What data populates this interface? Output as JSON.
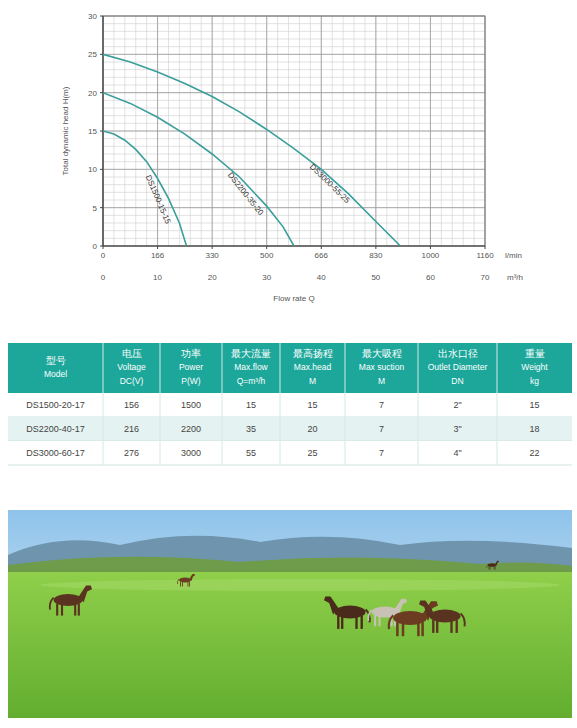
{
  "chart_data": {
    "type": "line",
    "xlabel": "Flow rate Q",
    "ylabel": "Total dynamic head H(m)",
    "x_unit": "m³/h",
    "x2_unit": "l/min",
    "xlim": [
      0,
      70
    ],
    "xticks": [
      0,
      10,
      20,
      30,
      40,
      50,
      60,
      70
    ],
    "x2ticks": [
      {
        "value": 0,
        "label": "0"
      },
      {
        "value": 10,
        "label": "166"
      },
      {
        "value": 20,
        "label": "330"
      },
      {
        "value": 30,
        "label": "500"
      },
      {
        "value": 40,
        "label": "666"
      },
      {
        "value": 50,
        "label": "830"
      },
      {
        "value": 60,
        "label": "1000"
      },
      {
        "value": 70,
        "label": "1160"
      }
    ],
    "ylim": [
      0,
      30
    ],
    "yticks": [
      0,
      5,
      10,
      15,
      20,
      25,
      30
    ],
    "grid": true,
    "color": "#3a9e9a",
    "series": [
      {
        "name": "DS1500-15-15",
        "x": [
          0,
          2,
          4,
          6,
          8,
          10,
          12,
          14,
          15.3
        ],
        "values": [
          15,
          14.6,
          13.8,
          12.6,
          11,
          8.8,
          6.2,
          3,
          0
        ]
      },
      {
        "name": "DS2200-35-20",
        "x": [
          0,
          5,
          10,
          15,
          20,
          25,
          30,
          33,
          35
        ],
        "values": [
          20,
          18.6,
          16.8,
          14.6,
          12,
          9,
          5.2,
          2.5,
          0
        ]
      },
      {
        "name": "DS3000-55-25",
        "x": [
          0,
          5,
          10,
          15,
          20,
          25,
          30,
          35,
          40,
          45,
          50,
          54.5
        ],
        "values": [
          25,
          24,
          22.7,
          21.2,
          19.5,
          17.5,
          15.2,
          12.7,
          10,
          6.8,
          3.2,
          0
        ]
      }
    ]
  },
  "table": {
    "columns": [
      {
        "zh": "型号",
        "en": "Model"
      },
      {
        "zh": "电压",
        "en": "Voltage",
        "unit": "DC(V)"
      },
      {
        "zh": "功率",
        "en": "Power",
        "unit": "P(W)"
      },
      {
        "zh": "最大流量",
        "en": "Max.flow",
        "unit": "Q=m³/h"
      },
      {
        "zh": "最高扬程",
        "en": "Max.head",
        "unit": "M"
      },
      {
        "zh": "最大吸程",
        "en": "Max suction",
        "unit": "M"
      },
      {
        "zh": "出水口径",
        "en": "Outlet Diameter",
        "unit": "DN"
      },
      {
        "zh": "重量",
        "en": "Weight",
        "unit": "kg"
      }
    ],
    "rows": [
      [
        "DS1500-20-17",
        156,
        1500,
        15,
        15,
        7,
        "2\"",
        15
      ],
      [
        "DS2200-40-17",
        216,
        2200,
        35,
        20,
        7,
        "3\"",
        18
      ],
      [
        "DS3000-60-17",
        276,
        3000,
        55,
        25,
        7,
        "4\"",
        22
      ]
    ]
  }
}
